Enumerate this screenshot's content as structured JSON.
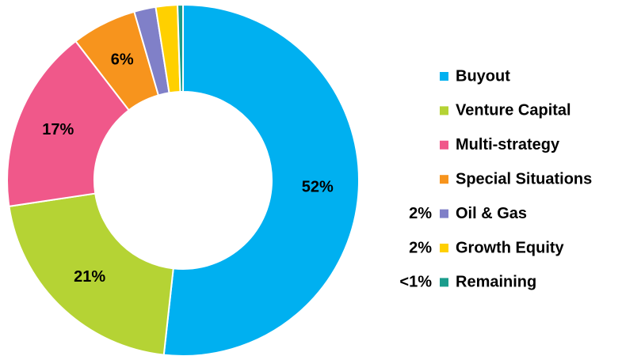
{
  "chart_data": {
    "type": "donut",
    "categories": [
      "Buyout",
      "Venture Capital",
      "Multi-strategy",
      "Special Situations",
      "Oil & Gas",
      "Growth Equity",
      "Remaining"
    ],
    "values": [
      52,
      21,
      17,
      6,
      2,
      2,
      0.5
    ],
    "value_labels": [
      "52%",
      "21%",
      "17%",
      "6%",
      "2%",
      "2%",
      "<1%"
    ],
    "colors": [
      "#00b0f0",
      "#b5d334",
      "#f0588a",
      "#f7941d",
      "#8080c8",
      "#ffd000",
      "#1a9c8c"
    ],
    "legend": "right"
  }
}
